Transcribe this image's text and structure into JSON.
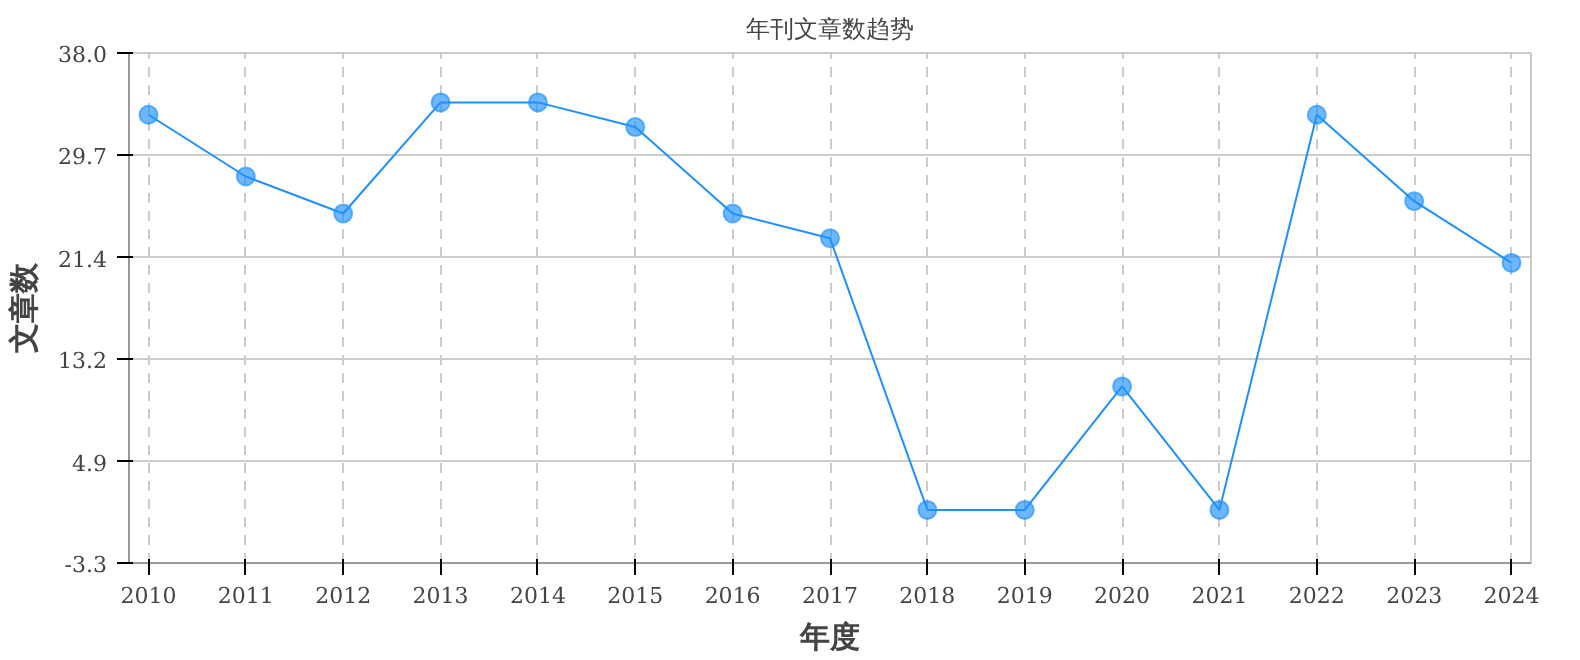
{
  "chart_data": {
    "type": "line",
    "title": "年刊文章数趋势",
    "xlabel": "年度",
    "ylabel": "文章数",
    "x": [
      2010,
      2011,
      2012,
      2013,
      2014,
      2015,
      2016,
      2017,
      2018,
      2019,
      2020,
      2021,
      2022,
      2023,
      2024
    ],
    "series": [
      {
        "color": "#1e90ff",
        "values": [
          33,
          28,
          25,
          34,
          34,
          32,
          25,
          23,
          1,
          1,
          11,
          1,
          33,
          26,
          21
        ]
      }
    ],
    "marker": "circle",
    "xlim": [
      2009.8,
      2024.2
    ],
    "xticks": [
      2010,
      2011,
      2012,
      2013,
      2014,
      2015,
      2016,
      2017,
      2018,
      2019,
      2020,
      2021,
      2022,
      2023,
      2024
    ],
    "ylim": [
      -3.3,
      38.0
    ],
    "yticks": [
      {
        "value": -3.3,
        "label": "-3.3"
      },
      {
        "value": 4.9,
        "label": "4.9"
      },
      {
        "value": 13.2,
        "label": "13.2"
      },
      {
        "value": 21.4,
        "label": "21.4"
      },
      {
        "value": 29.7,
        "label": "29.7"
      },
      {
        "value": 38.0,
        "label": "38.0"
      }
    ],
    "grid": true
  }
}
